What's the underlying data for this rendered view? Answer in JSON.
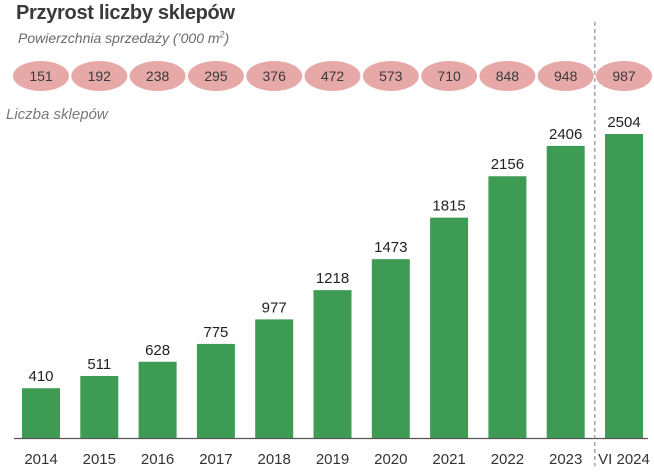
{
  "chart_data": {
    "type": "bar",
    "title": "Przyrost liczby sklepów",
    "subtitle": "Powierzchnia sprzedaży (’000 m",
    "subtitle_superscript": "2",
    "subtitle_close": ")",
    "ylabel": "Liczba sklepów",
    "xlabel": "",
    "categories": [
      "2014",
      "2015",
      "2016",
      "2017",
      "2018",
      "2019",
      "2020",
      "2021",
      "2022",
      "2023",
      "VI 2024"
    ],
    "values": [
      410,
      511,
      628,
      775,
      977,
      1218,
      1473,
      1815,
      2156,
      2406,
      2504
    ],
    "sales_area": [
      151,
      192,
      238,
      295,
      376,
      472,
      573,
      710,
      848,
      948,
      987
    ],
    "ylim": [
      0,
      2504
    ],
    "grid": false,
    "separator_before_category": "VI 2024",
    "colors": {
      "bar": "#3e9b53",
      "oval": "#e7a9a7",
      "text": "#222222",
      "axis": "#555555",
      "separator": "#7a7a7a"
    }
  }
}
